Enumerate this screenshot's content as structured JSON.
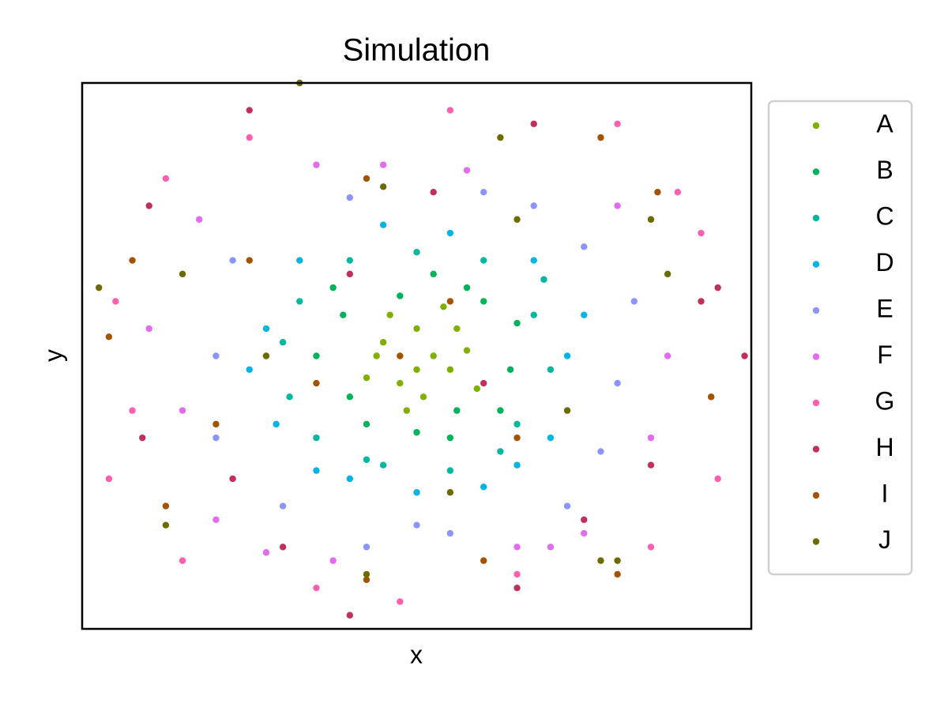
{
  "chart_data": {
    "type": "scatter",
    "title": "Simulation",
    "x_label": "x",
    "y_label": "y",
    "xlim": [
      -1,
      1
    ],
    "ylim": [
      -1,
      1
    ],
    "grid": false,
    "legend": "outside right",
    "series": [
      {
        "name": "A",
        "color": "#7fb000",
        "x": [
          -0.1,
          0.0,
          0.05,
          -0.05,
          0.1,
          -0.15,
          0.02,
          0.12,
          -0.08,
          0.15,
          -0.12,
          0.0,
          0.08,
          -0.03,
          0.18
        ],
        "y": [
          0.05,
          0.1,
          0.0,
          -0.1,
          -0.05,
          -0.08,
          -0.15,
          0.1,
          0.15,
          0.02,
          0.0,
          -0.05,
          0.18,
          -0.2,
          -0.12
        ]
      },
      {
        "name": "B",
        "color": "#00b35a",
        "x": [
          -0.22,
          0.2,
          0.1,
          -0.15,
          0.28,
          -0.3,
          0.05,
          0.25,
          -0.2,
          0.15,
          0.0,
          -0.05,
          0.3,
          -0.25,
          0.12
        ],
        "y": [
          0.15,
          0.2,
          -0.3,
          -0.25,
          -0.05,
          0.0,
          0.3,
          -0.2,
          -0.15,
          0.25,
          -0.28,
          0.22,
          0.12,
          0.25,
          -0.2
        ]
      },
      {
        "name": "C",
        "color": "#00b8a0",
        "x": [
          -0.35,
          0.35,
          0.3,
          -0.3,
          0.0,
          -0.1,
          0.4,
          -0.4,
          0.2,
          -0.2,
          0.25,
          -0.15,
          0.38,
          -0.38,
          0.1
        ],
        "y": [
          0.2,
          0.15,
          -0.25,
          -0.3,
          0.38,
          -0.4,
          -0.05,
          0.05,
          0.35,
          0.35,
          -0.35,
          -0.38,
          0.28,
          -0.15,
          -0.42
        ]
      },
      {
        "name": "D",
        "color": "#00b4e6",
        "x": [
          -0.45,
          0.45,
          0.35,
          -0.35,
          0.0,
          -0.2,
          0.2,
          0.4,
          -0.42,
          -0.5,
          0.1,
          -0.1,
          0.5,
          0.3,
          -0.3
        ],
        "y": [
          0.1,
          0.0,
          0.35,
          0.35,
          -0.5,
          -0.45,
          -0.48,
          -0.3,
          -0.25,
          -0.05,
          0.45,
          0.48,
          0.15,
          -0.4,
          -0.42
        ]
      },
      {
        "name": "E",
        "color": "#8c95ff",
        "x": [
          -0.55,
          0.5,
          -0.6,
          0.6,
          0.45,
          -0.4,
          0.0,
          0.2,
          -0.2,
          0.55,
          -0.6,
          0.1,
          -0.15,
          0.35,
          0.65
        ],
        "y": [
          0.35,
          0.4,
          0.0,
          -0.1,
          -0.55,
          -0.55,
          -0.62,
          0.6,
          0.58,
          -0.35,
          -0.3,
          -0.65,
          -0.7,
          0.55,
          0.2
        ]
      },
      {
        "name": "F",
        "color": "#e26bf0",
        "x": [
          -0.65,
          0.6,
          -0.7,
          0.7,
          -0.3,
          0.3,
          -0.25,
          0.5,
          -0.6,
          -0.8,
          0.75,
          -0.1,
          0.15,
          -0.45,
          0.4
        ],
        "y": [
          0.5,
          0.55,
          -0.2,
          -0.3,
          0.7,
          -0.7,
          -0.75,
          -0.65,
          -0.6,
          0.1,
          0.0,
          0.7,
          0.68,
          -0.72,
          -0.7
        ]
      },
      {
        "name": "G",
        "color": "#ff5fae",
        "x": [
          -0.9,
          0.88,
          -0.85,
          0.85,
          0.1,
          -0.05,
          0.6,
          -0.5,
          0.7,
          -0.7,
          0.3,
          -0.3,
          -0.75,
          0.78,
          0.9,
          -0.92
        ],
        "y": [
          0.2,
          -0.15,
          -0.2,
          0.45,
          0.9,
          -0.9,
          0.85,
          0.8,
          -0.7,
          -0.75,
          -0.8,
          -0.85,
          0.65,
          0.6,
          -0.45,
          -0.45
        ]
      },
      {
        "name": "H",
        "color": "#c0305a",
        "x": [
          -0.5,
          -0.8,
          0.9,
          0.98,
          -0.82,
          0.7,
          0.3,
          -0.2,
          0.35,
          -0.2,
          0.2,
          -0.55,
          0.5,
          0.85,
          -0.4,
          0.05
        ],
        "y": [
          0.9,
          0.55,
          0.25,
          0.0,
          -0.3,
          -0.4,
          -0.85,
          -0.95,
          0.85,
          0.3,
          -0.1,
          -0.45,
          -0.6,
          0.2,
          -0.7,
          0.6
        ]
      },
      {
        "name": "I",
        "color": "#a35200",
        "x": [
          -0.85,
          0.72,
          -0.92,
          0.88,
          -0.75,
          0.6,
          -0.15,
          0.2,
          -0.15,
          -0.5,
          0.1,
          -0.05,
          0.3,
          -0.3,
          0.55,
          -0.6
        ],
        "y": [
          0.35,
          0.6,
          0.07,
          -0.15,
          -0.55,
          -0.8,
          -0.82,
          -0.75,
          0.65,
          0.35,
          0.2,
          0.0,
          -0.3,
          -0.1,
          0.8,
          -0.25
        ]
      },
      {
        "name": "J",
        "color": "#6b6b00",
        "x": [
          -0.35,
          -0.95,
          0.7,
          0.75,
          -0.75,
          0.55,
          -0.15,
          0.25,
          -0.1,
          -0.45,
          0.3,
          0.45,
          -0.7,
          0.1,
          0.6
        ],
        "y": [
          1.0,
          0.25,
          0.5,
          0.3,
          -0.62,
          -0.75,
          -0.8,
          0.8,
          0.62,
          0.0,
          0.5,
          -0.2,
          0.3,
          -0.5,
          -0.75
        ]
      }
    ]
  }
}
